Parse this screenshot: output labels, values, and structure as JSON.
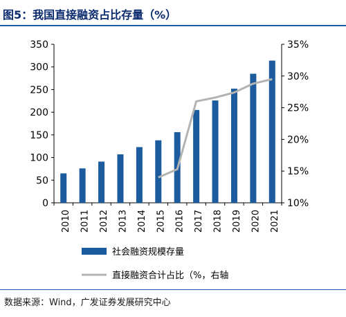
{
  "header": {
    "title": "图5：我国直接融资占比存量（%）"
  },
  "footer": {
    "source": "数据来源：Wind，广发证券发展研究中心"
  },
  "colors": {
    "bar": "#1c5c9e",
    "line": "#b3b3b3",
    "title": "#0a2a6e",
    "rule": "#1d5aa8"
  },
  "chart_data": {
    "type": "bar",
    "categories": [
      "2010",
      "2011",
      "2012",
      "2013",
      "2014",
      "2015",
      "2016",
      "2017",
      "2018",
      "2019",
      "2020",
      "2021"
    ],
    "series": [
      {
        "name": "社会融资规模存量",
        "kind": "bar",
        "axis": "left",
        "values": [
          65,
          76,
          91,
          107,
          123,
          138,
          156,
          205,
          226,
          252,
          285,
          314
        ]
      },
      {
        "name": "直接融资合计占比（%，右轴",
        "kind": "line",
        "axis": "right",
        "values": [
          null,
          null,
          null,
          null,
          null,
          14.0,
          15.3,
          26.0,
          26.6,
          27.4,
          28.8,
          29.5
        ]
      }
    ],
    "left_axis": {
      "ylim": [
        0,
        350
      ],
      "ticks": [
        "0",
        "50",
        "100",
        "150",
        "200",
        "250",
        "300",
        "350"
      ]
    },
    "right_axis": {
      "ylim": [
        10,
        35
      ],
      "ticks": [
        "10%",
        "15%",
        "20%",
        "25%",
        "30%",
        "35%"
      ]
    },
    "grid": false,
    "legend_position": "bottom"
  }
}
